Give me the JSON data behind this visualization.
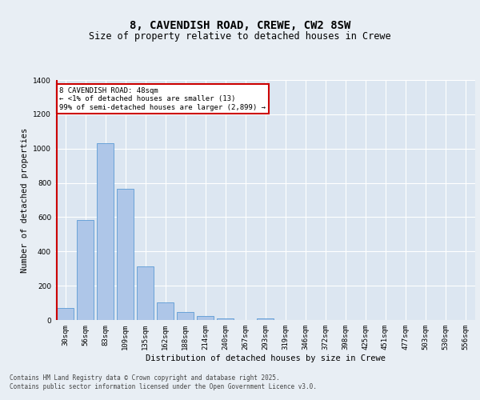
{
  "title": "8, CAVENDISH ROAD, CREWE, CW2 8SW",
  "subtitle": "Size of property relative to detached houses in Crewe",
  "xlabel": "Distribution of detached houses by size in Crewe",
  "ylabel": "Number of detached properties",
  "categories": [
    "30sqm",
    "56sqm",
    "83sqm",
    "109sqm",
    "135sqm",
    "162sqm",
    "188sqm",
    "214sqm",
    "240sqm",
    "267sqm",
    "293sqm",
    "319sqm",
    "346sqm",
    "372sqm",
    "398sqm",
    "425sqm",
    "451sqm",
    "477sqm",
    "503sqm",
    "530sqm",
    "556sqm"
  ],
  "values": [
    70,
    585,
    1030,
    765,
    315,
    105,
    45,
    22,
    10,
    0,
    8,
    0,
    0,
    0,
    0,
    0,
    0,
    0,
    0,
    0,
    0
  ],
  "bar_color": "#aec6e8",
  "bar_edge_color": "#5b9bd5",
  "background_color": "#e8eef4",
  "plot_bg_color": "#dce6f1",
  "grid_color": "#ffffff",
  "vline_color": "#cc0000",
  "annotation_text": "8 CAVENDISH ROAD: 48sqm\n← <1% of detached houses are smaller (13)\n99% of semi-detached houses are larger (2,899) →",
  "annotation_box_color": "#ffffff",
  "annotation_box_edge": "#cc0000",
  "ylim": [
    0,
    1400
  ],
  "yticks": [
    0,
    200,
    400,
    600,
    800,
    1000,
    1200,
    1400
  ],
  "footer": "Contains HM Land Registry data © Crown copyright and database right 2025.\nContains public sector information licensed under the Open Government Licence v3.0.",
  "title_fontsize": 10,
  "subtitle_fontsize": 8.5,
  "tick_fontsize": 6.5,
  "ylabel_fontsize": 7.5,
  "xlabel_fontsize": 7.5,
  "footer_fontsize": 5.5,
  "annotation_fontsize": 6.5
}
